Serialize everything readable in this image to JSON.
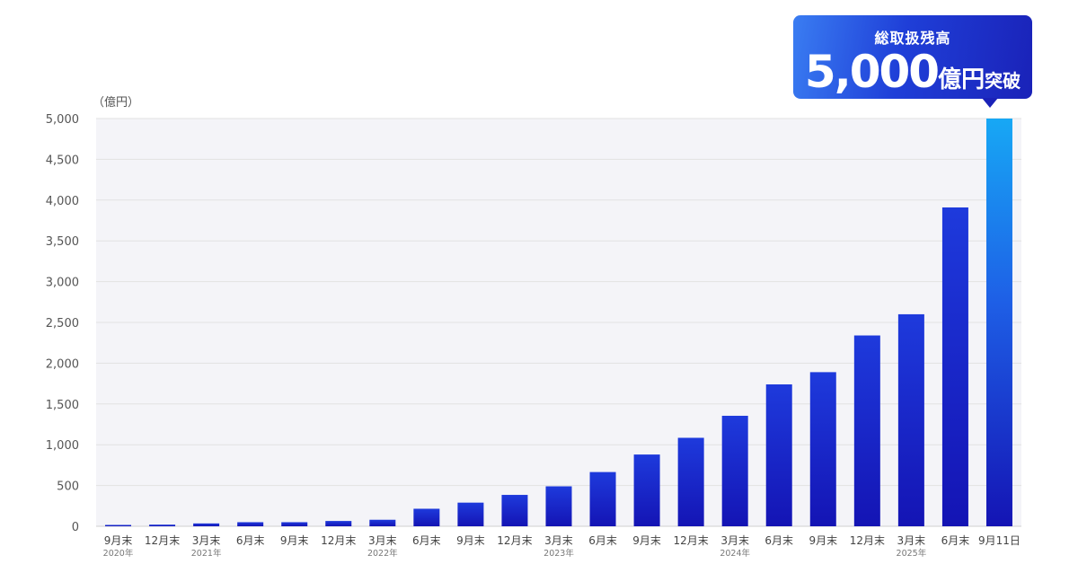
{
  "callout": {
    "label": "総取扱残高",
    "number": "5,000",
    "unit": "億円",
    "suffix": "突破"
  },
  "colors": {
    "bar_dark": "#1414b4",
    "bar_mid": "#1e3adc",
    "bar_highlight_top": "#17a8f5",
    "gridline": "#e2e2e2",
    "plot_bg": "#f4f4f8"
  },
  "chart_data": {
    "type": "bar",
    "unit_label": "（億円）",
    "ylim": [
      0,
      5000
    ],
    "yticks": [
      "0",
      "500",
      "1,000",
      "1,500",
      "2,000",
      "2,500",
      "3,000",
      "3,500",
      "4,000",
      "4,500",
      "5,000"
    ],
    "grid": true,
    "categories": [
      {
        "label": "9月末",
        "year": "2020年"
      },
      {
        "label": "12月末",
        "year": ""
      },
      {
        "label": "3月末",
        "year": "2021年"
      },
      {
        "label": "6月末",
        "year": ""
      },
      {
        "label": "9月末",
        "year": ""
      },
      {
        "label": "12月末",
        "year": ""
      },
      {
        "label": "3月末",
        "year": "2022年"
      },
      {
        "label": "6月末",
        "year": ""
      },
      {
        "label": "9月末",
        "year": ""
      },
      {
        "label": "12月末",
        "year": ""
      },
      {
        "label": "3月末",
        "year": "2023年"
      },
      {
        "label": "6月末",
        "year": ""
      },
      {
        "label": "9月末",
        "year": ""
      },
      {
        "label": "12月末",
        "year": ""
      },
      {
        "label": "3月末",
        "year": "2024年"
      },
      {
        "label": "6月末",
        "year": ""
      },
      {
        "label": "9月末",
        "year": ""
      },
      {
        "label": "12月末",
        "year": ""
      },
      {
        "label": "3月末",
        "year": "2025年"
      },
      {
        "label": "6月末",
        "year": ""
      },
      {
        "label": "9月11日",
        "year": ""
      }
    ],
    "values": [
      10,
      20,
      35,
      50,
      50,
      65,
      80,
      215,
      290,
      385,
      490,
      665,
      880,
      1085,
      1355,
      1740,
      1890,
      2340,
      2600,
      3910,
      5000
    ],
    "highlight_index": 20
  }
}
